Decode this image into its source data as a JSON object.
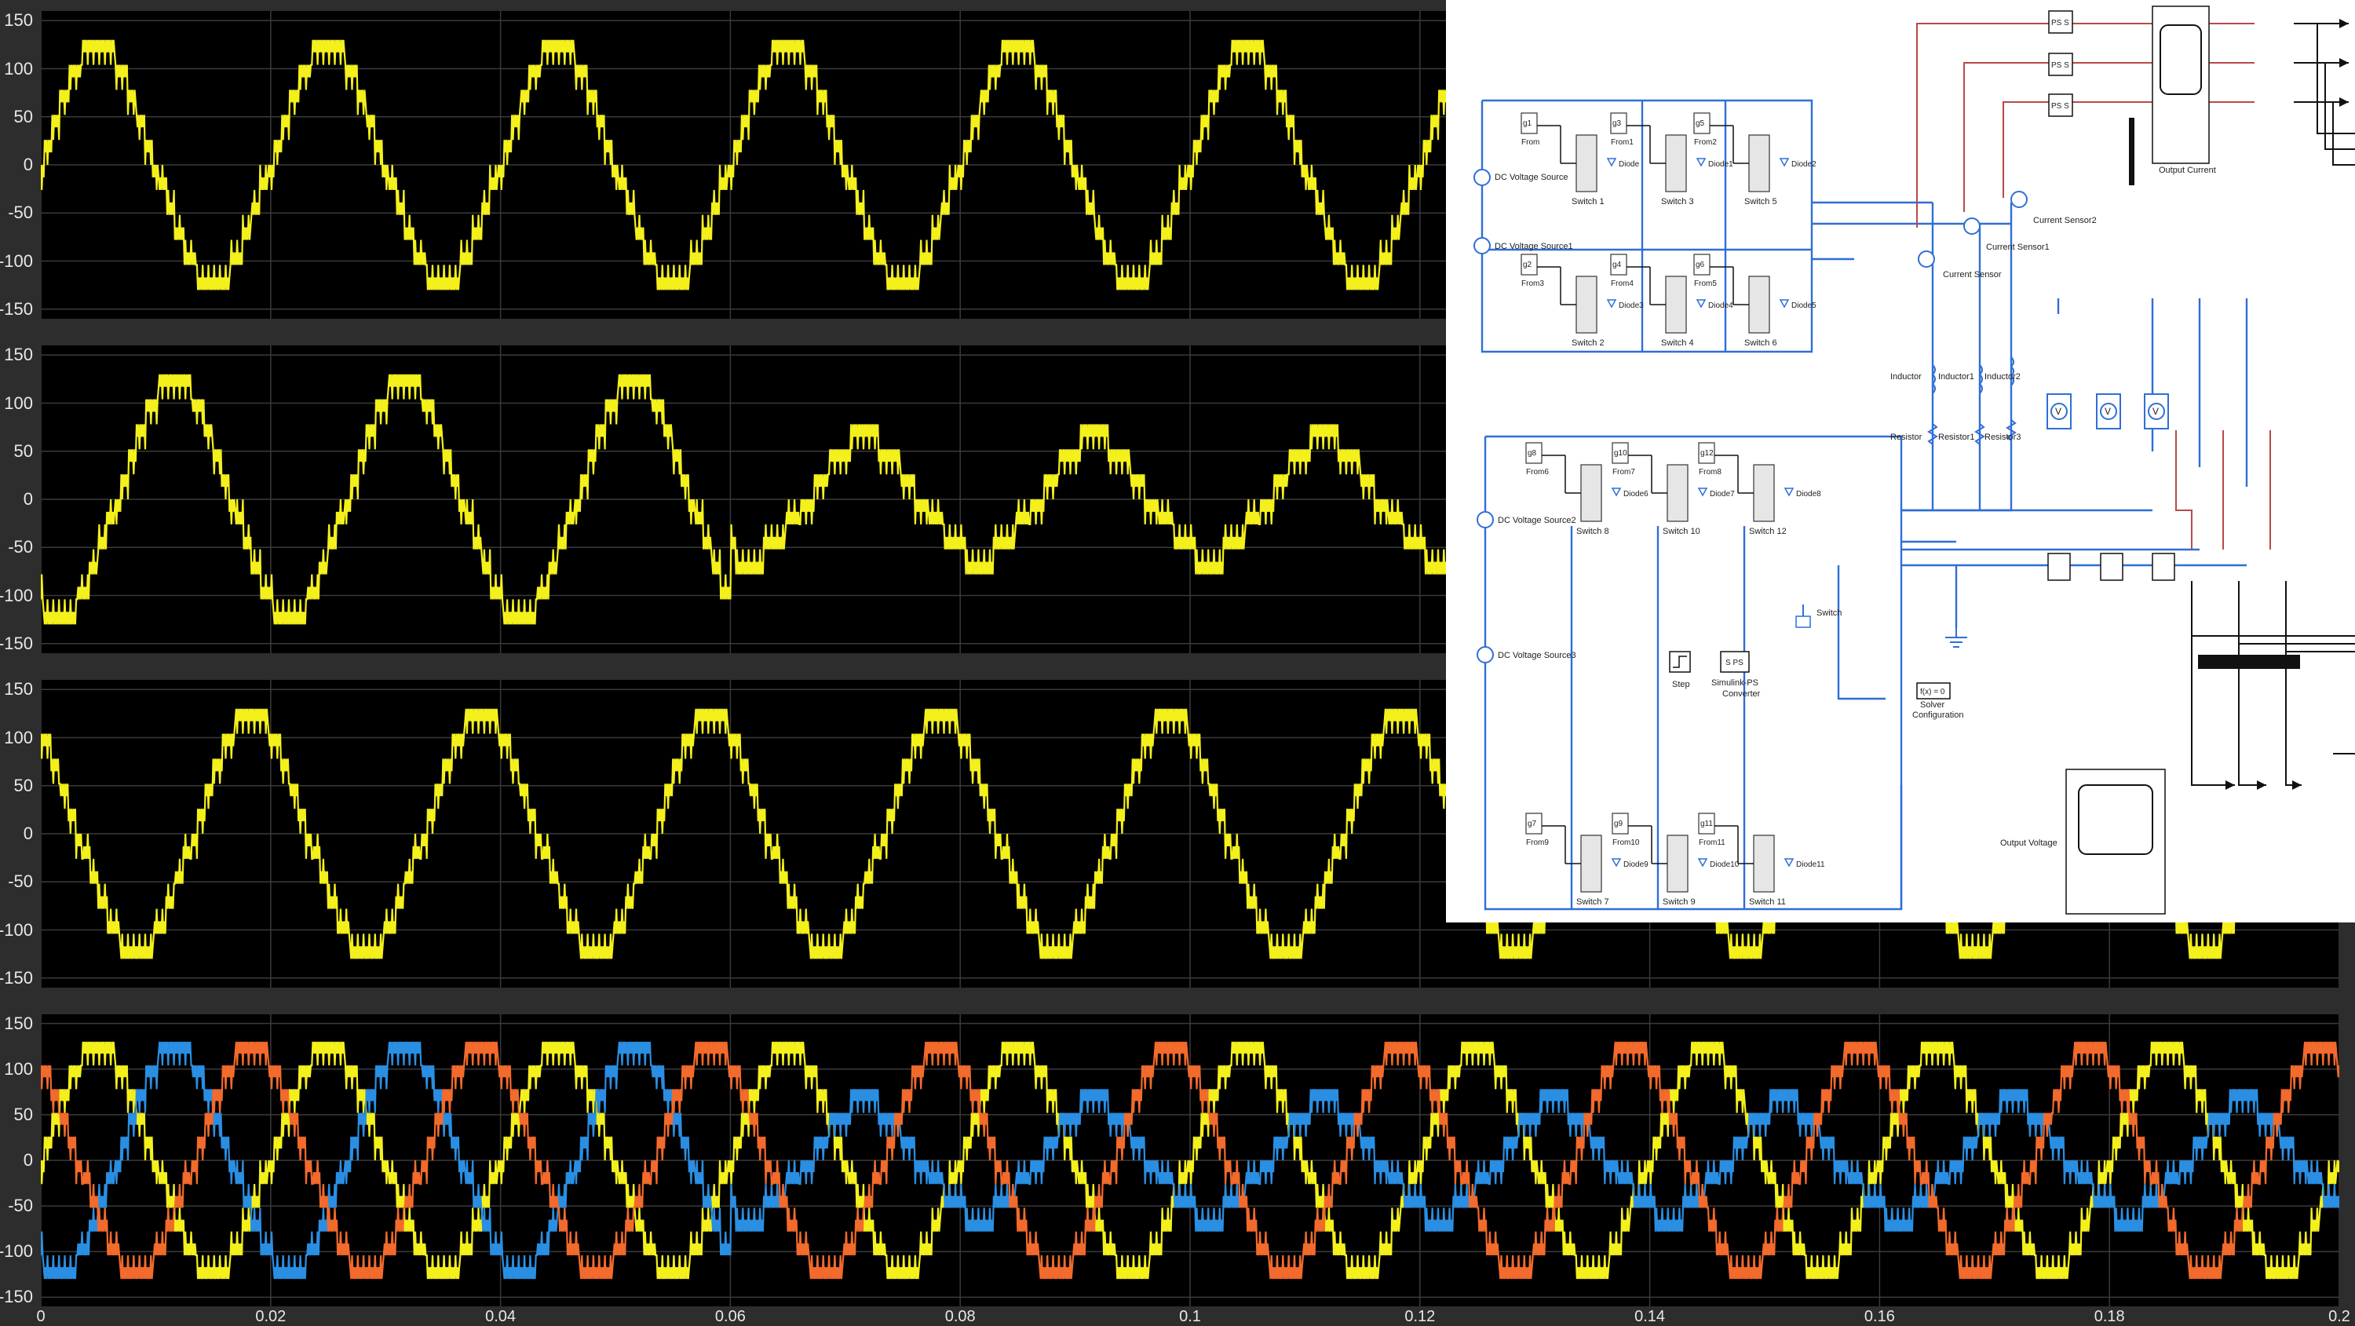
{
  "colors": {
    "phase_a": "#f4f01c",
    "phase_b": "#2a8fe3",
    "phase_c": "#f26a2c",
    "grid": "#3a3a3a",
    "tick_text": "#e8e8e8",
    "wire_blue": "#2f6fd6",
    "wire_red": "#b84a4a",
    "wire_black": "#111111"
  },
  "chart_data": [
    {
      "type": "line",
      "name_hint": "scope-trace-1",
      "x_range": [
        0,
        0.2
      ],
      "ylim": [
        -160,
        160
      ],
      "yticks": [
        150,
        100,
        50,
        0,
        -50,
        -100,
        -150
      ],
      "grid": true,
      "series": [
        {
          "color": "#f4f01c",
          "waveform": "PWM multilevel sine",
          "amplitude": 130,
          "frequency_hz": 50,
          "phase_deg": 0
        }
      ]
    },
    {
      "type": "line",
      "name_hint": "scope-trace-2",
      "x_range": [
        0,
        0.2
      ],
      "ylim": [
        -160,
        160
      ],
      "yticks": [
        150,
        100,
        50,
        0,
        -50,
        -100,
        -150
      ],
      "grid": true,
      "series": [
        {
          "color": "#f4f01c",
          "waveform": "PWM multilevel sine, amplitude reduced after step",
          "amplitude": 130,
          "amplitude_after_step": 70,
          "step_time": 0.06,
          "frequency_hz": 50,
          "phase_deg": 120
        }
      ]
    },
    {
      "type": "line",
      "name_hint": "scope-trace-3",
      "x_range": [
        0,
        0.2
      ],
      "ylim": [
        -160,
        160
      ],
      "yticks": [
        150,
        100,
        50,
        0,
        -50,
        -100,
        -150
      ],
      "grid": true,
      "series": [
        {
          "color": "#f4f01c",
          "waveform": "PWM multilevel sine",
          "amplitude": 130,
          "frequency_hz": 50,
          "phase_deg": 240
        }
      ]
    },
    {
      "type": "line",
      "name_hint": "scope-trace-4",
      "x_range": [
        0,
        0.2
      ],
      "ylim": [
        -160,
        160
      ],
      "yticks": [
        150,
        100,
        50,
        0,
        -50,
        -100,
        -150
      ],
      "grid": true,
      "series": [
        {
          "color": "#f4f01c",
          "waveform": "PWM multilevel sine",
          "amplitude": 130,
          "frequency_hz": 50,
          "phase_deg": 0
        },
        {
          "color": "#2a8fe3",
          "waveform": "PWM multilevel sine",
          "amplitude": 130,
          "amplitude_after_step": 70,
          "step_time": 0.06,
          "frequency_hz": 50,
          "phase_deg": 120
        },
        {
          "color": "#f26a2c",
          "waveform": "PWM multilevel sine",
          "amplitude": 130,
          "frequency_hz": 50,
          "phase_deg": 240
        }
      ]
    }
  ],
  "x_axis": {
    "ticks": [
      "0",
      "0.02",
      "0.04",
      "0.06",
      "0.08",
      "0.1",
      "0.12",
      "0.14",
      "0.16",
      "0.18",
      "0.2"
    ]
  },
  "y_tick_labels": [
    "150",
    "100",
    "50",
    "0",
    "-50",
    "-100",
    "-150"
  ],
  "diagram": {
    "sources": [
      "DC Voltage Source",
      "DC Voltage Source1",
      "DC Voltage Source2",
      "DC Voltage Source3"
    ],
    "switches_top": [
      "Switch 1",
      "Switch 3",
      "Switch 5",
      "Switch 2",
      "Switch 4",
      "Switch 6"
    ],
    "switches_bottom": [
      "Switch 8",
      "Switch 10",
      "Switch 12",
      "Switch 7",
      "Switch 9",
      "Switch 11"
    ],
    "diodes": [
      "Diode",
      "Diode1",
      "Diode2",
      "Diode3",
      "Diode4",
      "Diode5",
      "Diode6",
      "Diode7",
      "Diode8",
      "Diode9",
      "Diode10",
      "Diode11"
    ],
    "gates": [
      "g1",
      "g3",
      "g5",
      "g2",
      "g4",
      "g6",
      "g8",
      "g10",
      "g12",
      "g7",
      "g9",
      "g11"
    ],
    "froms": [
      "From",
      "From1",
      "From2",
      "From3",
      "From4",
      "From5",
      "From6",
      "From7",
      "From8",
      "From9",
      "From10",
      "From11"
    ],
    "sensors": [
      "Current Sensor",
      "Current Sensor1",
      "Current Sensor2"
    ],
    "inductors": [
      "Inductor",
      "Inductor1",
      "Inductor2"
    ],
    "resistors": [
      "Resistor",
      "Resistor1",
      "Resistor3"
    ],
    "ps_blocks": [
      "PS S",
      "PS S",
      "PS S"
    ],
    "output_current": "Output Current",
    "output_voltage": "Output Voltage",
    "switch_label": "Switch",
    "step_label": "Step",
    "converter_label": "Simulink-PS\nConverter",
    "converter_box": "S PS",
    "solver_box": "f(x) = 0",
    "solver_label": "Solver\nConfiguration"
  }
}
